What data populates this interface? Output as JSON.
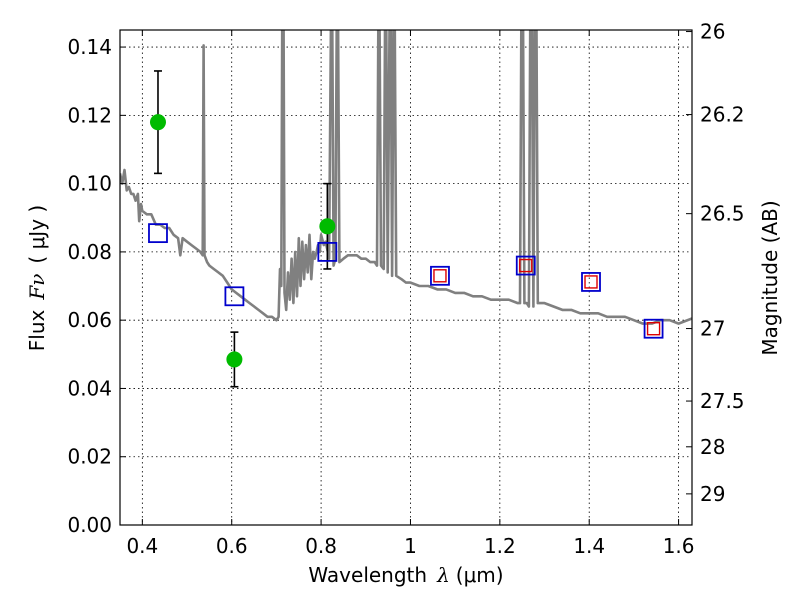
{
  "chart_data": {
    "type": "scatter",
    "xlabel_text": "Wavelength",
    "xlabel_symbol": "λ",
    "xlabel_unit": "(μm)",
    "ylabel_text": "Flux",
    "ylabel_symbol": "Fν",
    "ylabel_unit": "( μJy )",
    "y2label": "Magnitude (AB)",
    "xlim": [
      0.35,
      1.63
    ],
    "ylim": [
      0,
      0.145
    ],
    "grid": true,
    "x_ticks": [
      {
        "value": 0.4,
        "label": "0.4"
      },
      {
        "value": 0.6,
        "label": "0.6"
      },
      {
        "value": 0.8,
        "label": "0.8"
      },
      {
        "value": 1.0,
        "label": "1"
      },
      {
        "value": 1.2,
        "label": "1.2"
      },
      {
        "value": 1.4,
        "label": "1.4"
      },
      {
        "value": 1.6,
        "label": "1.6"
      }
    ],
    "y_ticks": [
      {
        "value": 0.0,
        "label": "0.00"
      },
      {
        "value": 0.02,
        "label": "0.02"
      },
      {
        "value": 0.04,
        "label": "0.04"
      },
      {
        "value": 0.06,
        "label": "0.06"
      },
      {
        "value": 0.08,
        "label": "0.08"
      },
      {
        "value": 0.1,
        "label": "0.10"
      },
      {
        "value": 0.12,
        "label": "0.12"
      },
      {
        "value": 0.14,
        "label": "0.14"
      }
    ],
    "y2_ticks": [
      {
        "label": "26",
        "mag": 26.0
      },
      {
        "label": "26.2",
        "mag": 26.2
      },
      {
        "label": "26.5",
        "mag": 26.5
      },
      {
        "label": "27",
        "mag": 27.0
      },
      {
        "label": "27.5",
        "mag": 27.5
      },
      {
        "label": "28",
        "mag": 28.0
      },
      {
        "label": "29",
        "mag": 29.0
      }
    ],
    "observed": [
      {
        "x": 0.435,
        "y": 0.118,
        "err_low": 0.103,
        "err_high": 0.133
      },
      {
        "x": 0.606,
        "y": 0.0485,
        "err_low": 0.0405,
        "err_high": 0.0565
      },
      {
        "x": 0.814,
        "y": 0.0875,
        "err_low": 0.075,
        "err_high": 0.1
      }
    ],
    "model_points": [
      {
        "x": 0.435,
        "y": 0.0855
      },
      {
        "x": 0.606,
        "y": 0.067
      },
      {
        "x": 0.814,
        "y": 0.08
      },
      {
        "x": 1.066,
        "y": 0.073
      },
      {
        "x": 1.258,
        "y": 0.076
      },
      {
        "x": 1.404,
        "y": 0.0712
      },
      {
        "x": 1.544,
        "y": 0.0575
      }
    ],
    "nir_points": [
      {
        "x": 1.066,
        "y": 0.073
      },
      {
        "x": 1.258,
        "y": 0.076
      },
      {
        "x": 1.404,
        "y": 0.0712
      },
      {
        "x": 1.544,
        "y": 0.0575
      }
    ],
    "sed_curve": [
      [
        0.35,
        0.103
      ],
      [
        0.355,
        0.1
      ],
      [
        0.36,
        0.104
      ],
      [
        0.365,
        0.098
      ],
      [
        0.37,
        0.099
      ],
      [
        0.375,
        0.097
      ],
      [
        0.38,
        0.097
      ],
      [
        0.385,
        0.095
      ],
      [
        0.39,
        0.097
      ],
      [
        0.393,
        0.089
      ],
      [
        0.397,
        0.094
      ],
      [
        0.4,
        0.092
      ],
      [
        0.41,
        0.091
      ],
      [
        0.42,
        0.091
      ],
      [
        0.43,
        0.088
      ],
      [
        0.44,
        0.088
      ],
      [
        0.45,
        0.087
      ],
      [
        0.46,
        0.087
      ],
      [
        0.47,
        0.085
      ],
      [
        0.48,
        0.084
      ],
      [
        0.485,
        0.079
      ],
      [
        0.49,
        0.084
      ],
      [
        0.5,
        0.083
      ],
      [
        0.51,
        0.082
      ],
      [
        0.52,
        0.081
      ],
      [
        0.53,
        0.08
      ],
      [
        0.535,
        0.079
      ],
      [
        0.537,
        0.1405
      ],
      [
        0.539,
        0.079
      ],
      [
        0.545,
        0.077
      ],
      [
        0.55,
        0.076
      ],
      [
        0.56,
        0.075
      ],
      [
        0.57,
        0.074
      ],
      [
        0.58,
        0.073
      ],
      [
        0.59,
        0.071
      ],
      [
        0.6,
        0.069
      ],
      [
        0.61,
        0.068
      ],
      [
        0.62,
        0.067
      ],
      [
        0.63,
        0.066
      ],
      [
        0.64,
        0.065
      ],
      [
        0.65,
        0.064
      ],
      [
        0.66,
        0.063
      ],
      [
        0.67,
        0.062
      ],
      [
        0.68,
        0.061
      ],
      [
        0.69,
        0.061
      ],
      [
        0.7,
        0.06
      ],
      [
        0.705,
        0.061
      ],
      [
        0.708,
        0.075
      ],
      [
        0.711,
        0.07
      ],
      [
        0.713,
        0.145
      ],
      [
        0.716,
        0.145
      ],
      [
        0.718,
        0.068
      ],
      [
        0.722,
        0.063
      ],
      [
        0.726,
        0.074
      ],
      [
        0.73,
        0.066
      ],
      [
        0.734,
        0.078
      ],
      [
        0.738,
        0.065
      ],
      [
        0.742,
        0.08
      ],
      [
        0.746,
        0.067
      ],
      [
        0.75,
        0.084
      ],
      [
        0.754,
        0.07
      ],
      [
        0.758,
        0.083
      ],
      [
        0.762,
        0.072
      ],
      [
        0.766,
        0.082
      ],
      [
        0.77,
        0.074
      ],
      [
        0.774,
        0.085
      ],
      [
        0.778,
        0.072
      ],
      [
        0.782,
        0.08
      ],
      [
        0.786,
        0.078
      ],
      [
        0.79,
        0.08
      ],
      [
        0.793,
        0.082
      ],
      [
        0.797,
        0.08
      ],
      [
        0.8,
        0.085
      ],
      [
        0.806,
        0.082
      ],
      [
        0.81,
        0.083
      ],
      [
        0.815,
        0.08
      ],
      [
        0.818,
        0.078
      ],
      [
        0.822,
        0.145
      ],
      [
        0.825,
        0.145
      ],
      [
        0.828,
        0.076
      ],
      [
        0.832,
        0.078
      ],
      [
        0.835,
        0.145
      ],
      [
        0.838,
        0.145
      ],
      [
        0.841,
        0.077
      ],
      [
        0.85,
        0.078
      ],
      [
        0.86,
        0.079
      ],
      [
        0.87,
        0.079
      ],
      [
        0.88,
        0.079
      ],
      [
        0.89,
        0.078
      ],
      [
        0.9,
        0.078
      ],
      [
        0.91,
        0.077
      ],
      [
        0.92,
        0.077
      ],
      [
        0.925,
        0.076
      ],
      [
        0.928,
        0.145
      ],
      [
        0.931,
        0.145
      ],
      [
        0.934,
        0.076
      ],
      [
        0.94,
        0.075
      ],
      [
        0.943,
        0.145
      ],
      [
        0.946,
        0.145
      ],
      [
        0.949,
        0.074
      ],
      [
        0.953,
        0.145
      ],
      [
        0.956,
        0.145
      ],
      [
        0.959,
        0.073
      ],
      [
        0.962,
        0.145
      ],
      [
        0.965,
        0.145
      ],
      [
        0.968,
        0.073
      ],
      [
        0.98,
        0.072
      ],
      [
        0.99,
        0.071
      ],
      [
        1.0,
        0.071
      ],
      [
        1.02,
        0.07
      ],
      [
        1.04,
        0.07
      ],
      [
        1.06,
        0.069
      ],
      [
        1.08,
        0.069
      ],
      [
        1.1,
        0.068
      ],
      [
        1.12,
        0.068
      ],
      [
        1.14,
        0.067
      ],
      [
        1.16,
        0.067
      ],
      [
        1.18,
        0.066
      ],
      [
        1.2,
        0.066
      ],
      [
        1.22,
        0.066
      ],
      [
        1.24,
        0.065
      ],
      [
        1.245,
        0.065
      ],
      [
        1.248,
        0.145
      ],
      [
        1.252,
        0.145
      ],
      [
        1.255,
        0.065
      ],
      [
        1.26,
        0.065
      ],
      [
        1.265,
        0.064
      ],
      [
        1.268,
        0.145
      ],
      [
        1.272,
        0.145
      ],
      [
        1.275,
        0.064
      ],
      [
        1.278,
        0.145
      ],
      [
        1.282,
        0.145
      ],
      [
        1.285,
        0.065
      ],
      [
        1.3,
        0.065
      ],
      [
        1.32,
        0.064
      ],
      [
        1.34,
        0.063
      ],
      [
        1.36,
        0.063
      ],
      [
        1.38,
        0.062
      ],
      [
        1.4,
        0.062
      ],
      [
        1.42,
        0.062
      ],
      [
        1.44,
        0.061
      ],
      [
        1.46,
        0.061
      ],
      [
        1.48,
        0.061
      ],
      [
        1.5,
        0.06
      ],
      [
        1.52,
        0.059
      ],
      [
        1.54,
        0.059
      ],
      [
        1.56,
        0.06
      ],
      [
        1.58,
        0.06
      ],
      [
        1.6,
        0.059
      ],
      [
        1.63,
        0.0605
      ]
    ]
  }
}
